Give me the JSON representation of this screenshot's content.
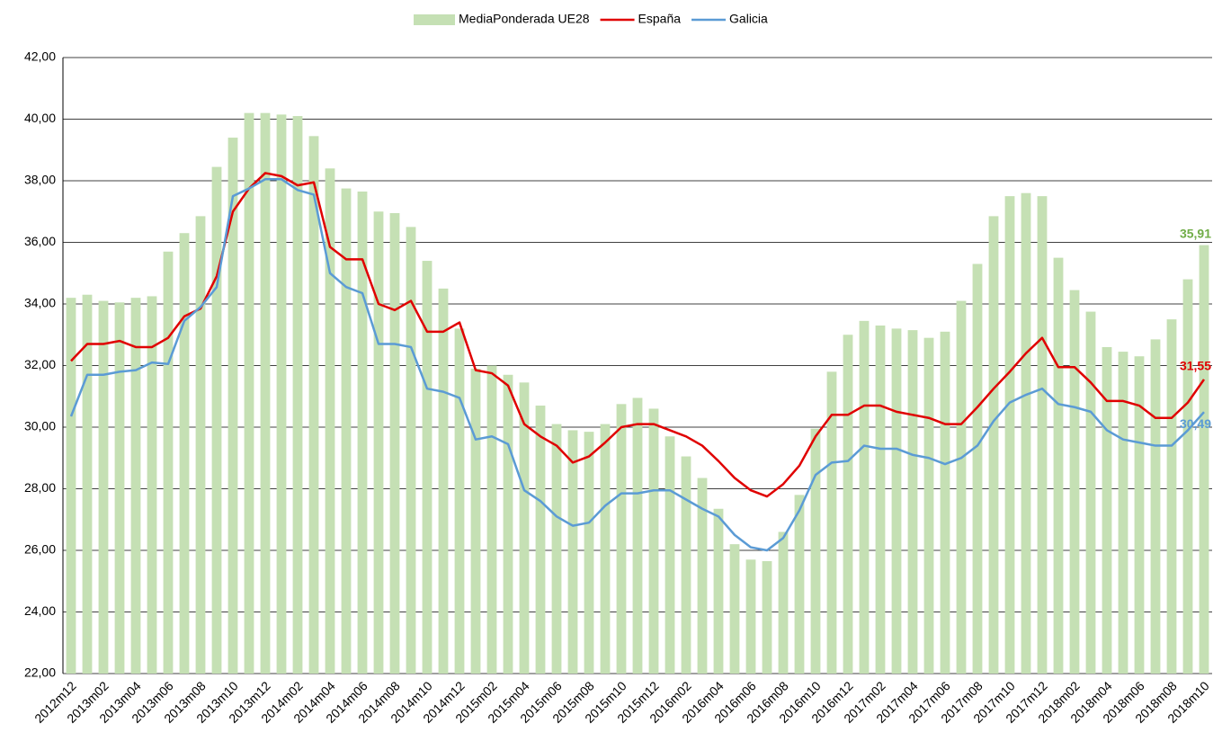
{
  "chart_data": {
    "type": "combo",
    "categories": [
      "2012m12",
      null,
      "2013m02",
      null,
      "2013m04",
      null,
      "2013m06",
      null,
      "2013m08",
      null,
      "2013m10",
      null,
      "2013m12",
      null,
      "2014m02",
      null,
      "2014m04",
      null,
      "2014m06",
      null,
      "2014m08",
      null,
      "2014m10",
      null,
      "2014m12",
      null,
      "2015m02",
      null,
      "2015m04",
      null,
      "2015m06",
      null,
      "2015m08",
      null,
      "2015m10",
      null,
      "2015m12",
      null,
      "2016m02",
      null,
      "2016m04",
      null,
      "2016m06",
      null,
      "2016m08",
      null,
      "2016m10",
      null,
      "2016m12",
      null,
      "2017m02",
      null,
      "2017m04",
      null,
      "2017m06",
      null,
      "2017m08",
      null,
      "2017m10",
      null,
      "2017m12",
      null,
      "2018m02",
      null,
      "2018m04",
      null,
      "2018m06",
      null,
      "2018m08",
      null,
      "2018m10"
    ],
    "series": [
      {
        "name": "MediaPonderada UE28",
        "type": "bar",
        "color": "#c5e0b4",
        "values": [
          34.2,
          34.3,
          34.1,
          34.05,
          34.2,
          34.25,
          35.7,
          36.3,
          36.85,
          38.45,
          39.4,
          40.2,
          40.2,
          40.15,
          40.1,
          39.45,
          38.4,
          37.75,
          37.65,
          37.0,
          36.95,
          36.5,
          35.4,
          34.5,
          33.2,
          31.9,
          32.0,
          31.7,
          31.45,
          30.7,
          30.1,
          29.9,
          29.85,
          30.1,
          30.75,
          30.95,
          30.6,
          29.7,
          29.05,
          28.35,
          27.35,
          26.2,
          25.7,
          25.65,
          26.6,
          27.8,
          29.95,
          31.8,
          33.0,
          33.45,
          33.3,
          33.2,
          33.15,
          32.9,
          33.1,
          34.1,
          35.3,
          36.85,
          37.5,
          37.6,
          37.5,
          35.5,
          34.45,
          33.75,
          32.6,
          32.45,
          32.3,
          32.85,
          33.5,
          34.8,
          35.91
        ],
        "value_labels": [
          null,
          null,
          null,
          null,
          null,
          null,
          null,
          null,
          null,
          null,
          null,
          null,
          null,
          null,
          null,
          null,
          null,
          null,
          null,
          null,
          null,
          null,
          null,
          null,
          null,
          null,
          null,
          null,
          null,
          null,
          null,
          null,
          null,
          null,
          null,
          null,
          null,
          null,
          null,
          null,
          null,
          null,
          null,
          null,
          null,
          null,
          null,
          null,
          null,
          null,
          null,
          null,
          null,
          null,
          null,
          null,
          null,
          null,
          null,
          null,
          null,
          null,
          null,
          null,
          null,
          null,
          null,
          null,
          null,
          null,
          "35,91"
        ],
        "label_color": "#70ad47"
      },
      {
        "name": "España",
        "type": "line",
        "color": "#e00000",
        "values": [
          32.15,
          32.7,
          32.7,
          32.8,
          32.6,
          32.6,
          32.9,
          33.6,
          33.85,
          34.9,
          37.0,
          37.75,
          38.25,
          38.15,
          37.85,
          37.95,
          35.85,
          35.45,
          35.45,
          34.0,
          33.8,
          34.1,
          33.1,
          33.1,
          33.4,
          31.85,
          31.75,
          31.35,
          30.1,
          29.7,
          29.4,
          28.85,
          29.05,
          29.5,
          30.0,
          30.1,
          30.1,
          29.9,
          29.7,
          29.4,
          28.9,
          28.35,
          27.95,
          27.75,
          28.15,
          28.75,
          29.7,
          30.4,
          30.4,
          30.7,
          30.7,
          30.5,
          30.4,
          30.3,
          30.1,
          30.1,
          30.65,
          31.25,
          31.8,
          32.4,
          32.9,
          31.95,
          31.95,
          31.45,
          30.85,
          30.85,
          30.7,
          30.3,
          30.3,
          30.8,
          31.55
        ],
        "value_labels": [
          null,
          null,
          null,
          null,
          null,
          null,
          null,
          null,
          null,
          null,
          null,
          null,
          null,
          null,
          null,
          null,
          null,
          null,
          null,
          null,
          null,
          null,
          null,
          null,
          null,
          null,
          null,
          null,
          null,
          null,
          null,
          null,
          null,
          null,
          null,
          null,
          null,
          null,
          null,
          null,
          null,
          null,
          null,
          null,
          null,
          null,
          null,
          null,
          null,
          null,
          null,
          null,
          null,
          null,
          null,
          null,
          null,
          null,
          null,
          null,
          null,
          null,
          null,
          null,
          null,
          null,
          null,
          null,
          null,
          null,
          "31,55"
        ]
      },
      {
        "name": "Galicia",
        "type": "line",
        "color": "#5b9bd5",
        "values": [
          30.35,
          31.7,
          31.7,
          31.8,
          31.85,
          32.1,
          32.05,
          33.45,
          33.9,
          34.55,
          37.5,
          37.75,
          38.05,
          38.05,
          37.7,
          37.55,
          35.0,
          34.55,
          34.35,
          32.7,
          32.7,
          32.6,
          31.25,
          31.15,
          30.95,
          29.6,
          29.7,
          29.45,
          27.95,
          27.6,
          27.1,
          26.8,
          26.9,
          27.45,
          27.85,
          27.85,
          27.95,
          27.95,
          27.65,
          27.35,
          27.1,
          26.5,
          26.1,
          26.0,
          26.4,
          27.3,
          28.45,
          28.85,
          28.9,
          29.4,
          29.3,
          29.3,
          29.1,
          29.0,
          28.8,
          29.0,
          29.4,
          30.2,
          30.8,
          31.05,
          31.25,
          30.75,
          30.65,
          30.5,
          29.9,
          29.6,
          29.5,
          29.4,
          29.4,
          29.9,
          30.49
        ],
        "value_labels": [
          null,
          null,
          null,
          null,
          null,
          null,
          null,
          null,
          null,
          null,
          null,
          null,
          null,
          null,
          null,
          null,
          null,
          null,
          null,
          null,
          null,
          null,
          null,
          null,
          null,
          null,
          null,
          null,
          null,
          null,
          null,
          null,
          null,
          null,
          null,
          null,
          null,
          null,
          null,
          null,
          null,
          null,
          null,
          null,
          null,
          null,
          null,
          null,
          null,
          null,
          null,
          null,
          null,
          null,
          null,
          null,
          null,
          null,
          null,
          null,
          null,
          null,
          null,
          null,
          null,
          null,
          null,
          null,
          null,
          null,
          "30,49"
        ]
      }
    ],
    "ylim": [
      22,
      42
    ],
    "yticks": [
      {
        "value": 22,
        "label": "22,00"
      },
      {
        "value": 24,
        "label": "24,00"
      },
      {
        "value": 26,
        "label": "26,00"
      },
      {
        "value": 28,
        "label": "28,00"
      },
      {
        "value": 30,
        "label": "30,00"
      },
      {
        "value": 32,
        "label": "32,00"
      },
      {
        "value": 34,
        "label": "34,00"
      },
      {
        "value": 36,
        "label": "36,00"
      },
      {
        "value": 38,
        "label": "38,00"
      },
      {
        "value": 40,
        "label": "40,00"
      },
      {
        "value": 42,
        "label": "42,00"
      }
    ],
    "grid": true,
    "legend": "top"
  }
}
